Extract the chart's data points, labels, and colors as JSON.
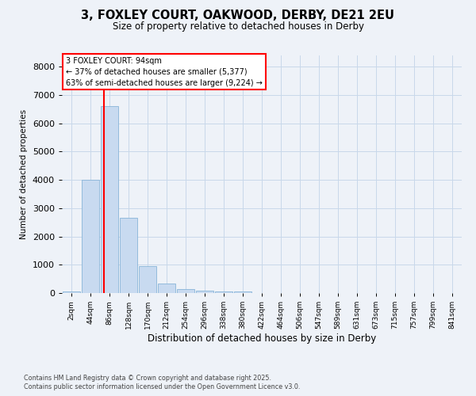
{
  "title_line1": "3, FOXLEY COURT, OAKWOOD, DERBY, DE21 2EU",
  "title_line2": "Size of property relative to detached houses in Derby",
  "xlabel": "Distribution of detached houses by size in Derby",
  "ylabel": "Number of detached properties",
  "categories": [
    "2sqm",
    "44sqm",
    "86sqm",
    "128sqm",
    "170sqm",
    "212sqm",
    "254sqm",
    "296sqm",
    "338sqm",
    "380sqm",
    "422sqm",
    "464sqm",
    "506sqm",
    "547sqm",
    "589sqm",
    "631sqm",
    "673sqm",
    "715sqm",
    "757sqm",
    "799sqm",
    "841sqm"
  ],
  "values": [
    50,
    4000,
    6600,
    2650,
    950,
    330,
    130,
    75,
    50,
    50,
    0,
    0,
    0,
    0,
    0,
    0,
    0,
    0,
    0,
    0,
    0
  ],
  "bar_color": "#c8daf0",
  "bar_edgecolor": "#88b4d8",
  "grid_color": "#c8d8ea",
  "background_color": "#eef2f8",
  "annotation_text": "3 FOXLEY COURT: 94sqm\n← 37% of detached houses are smaller (5,377)\n63% of semi-detached houses are larger (9,224) →",
  "annotation_box_facecolor": "white",
  "annotation_box_edgecolor": "red",
  "vline_color": "red",
  "yticks": [
    0,
    1000,
    2000,
    3000,
    4000,
    5000,
    6000,
    7000,
    8000
  ],
  "ylim_max": 8400,
  "footnote_line1": "Contains HM Land Registry data © Crown copyright and database right 2025.",
  "footnote_line2": "Contains public sector information licensed under the Open Government Licence v3.0."
}
